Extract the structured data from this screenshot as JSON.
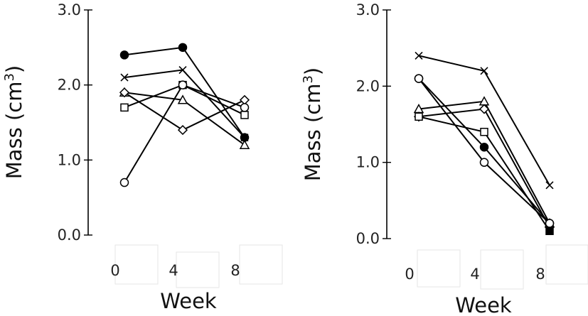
{
  "chart_data": [
    {
      "type": "line",
      "xlabel": "Week",
      "ylabel": "Mass (cm",
      "ylabel_superscript": "3",
      "ylabel_suffix": ")",
      "x_ticks": [
        "0",
        "4",
        "8"
      ],
      "y_ticks": [
        "0.0",
        "1.0",
        "2.0",
        "3.0"
      ],
      "ylim": [
        0,
        3
      ],
      "grid": false,
      "x": [
        0,
        4,
        8
      ],
      "series": [
        {
          "marker": "filled-circle",
          "values": [
            2.4,
            2.5,
            1.3
          ]
        },
        {
          "marker": "cross",
          "values": [
            2.1,
            2.2,
            1.3
          ]
        },
        {
          "marker": "open-triangle",
          "values": [
            1.9,
            1.8,
            1.2
          ]
        },
        {
          "marker": "open-diamond",
          "values": [
            1.9,
            1.4,
            1.8
          ]
        },
        {
          "marker": "open-square",
          "values": [
            1.7,
            2.0,
            1.6
          ]
        },
        {
          "marker": "open-circle",
          "values": [
            0.7,
            2.0,
            1.7
          ]
        }
      ]
    },
    {
      "type": "line",
      "xlabel": "Week",
      "ylabel": "Mass (cm",
      "ylabel_superscript": "3",
      "ylabel_suffix": ")",
      "x_ticks": [
        "0",
        "4",
        "8"
      ],
      "y_ticks": [
        "0.0",
        "1.0",
        "2.0",
        "3.0"
      ],
      "ylim": [
        0,
        3
      ],
      "grid": false,
      "x": [
        0,
        4,
        8
      ],
      "series": [
        {
          "marker": "cross",
          "values": [
            2.4,
            2.2,
            0.7
          ]
        },
        {
          "marker": "filled-circle",
          "values": [
            2.1,
            1.2,
            0.2
          ]
        },
        {
          "marker": "open-triangle",
          "values": [
            1.7,
            1.8,
            0.2
          ]
        },
        {
          "marker": "open-diamond",
          "values": [
            1.6,
            1.7,
            0.15
          ]
        },
        {
          "marker": "open-square",
          "values": [
            1.6,
            1.4,
            0.1
          ]
        },
        {
          "marker": "open-circle",
          "values": [
            2.1,
            1.0,
            0.2
          ]
        }
      ]
    }
  ]
}
